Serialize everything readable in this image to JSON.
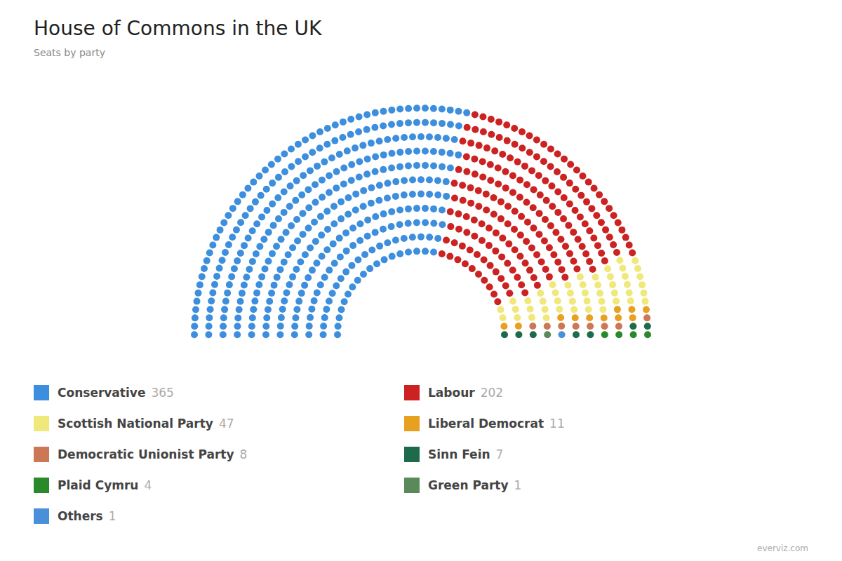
{
  "chart_data": {
    "type": "parliament",
    "title": "House of Commons in the UK",
    "subtitle": "Seats by party",
    "categories": [
      "Conservative",
      "Labour",
      "Scottish National Party",
      "Liberal Democrat",
      "Democratic Unionist Party",
      "Sinn Fein",
      "Plaid Cymru",
      "Green Party",
      "Others"
    ],
    "values": [
      365,
      202,
      47,
      11,
      8,
      7,
      4,
      1,
      1
    ],
    "colors": [
      "#3e8ede",
      "#cc2222",
      "#f0e87a",
      "#e8a020",
      "#cc7755",
      "#1e6b4c",
      "#2a8a2a",
      "#5a8a5a",
      "#4a90d9"
    ],
    "legend": "bottom",
    "annotations": [
      "everviz.com"
    ]
  }
}
